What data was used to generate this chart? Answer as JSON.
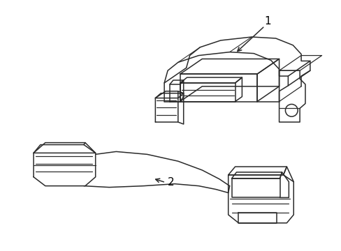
{
  "background_color": "#ffffff",
  "line_color": "#2a2a2a",
  "line_width": 1.1,
  "fig_width": 4.89,
  "fig_height": 3.6,
  "dpi": 100,
  "label_1": "1",
  "label_2": "2"
}
